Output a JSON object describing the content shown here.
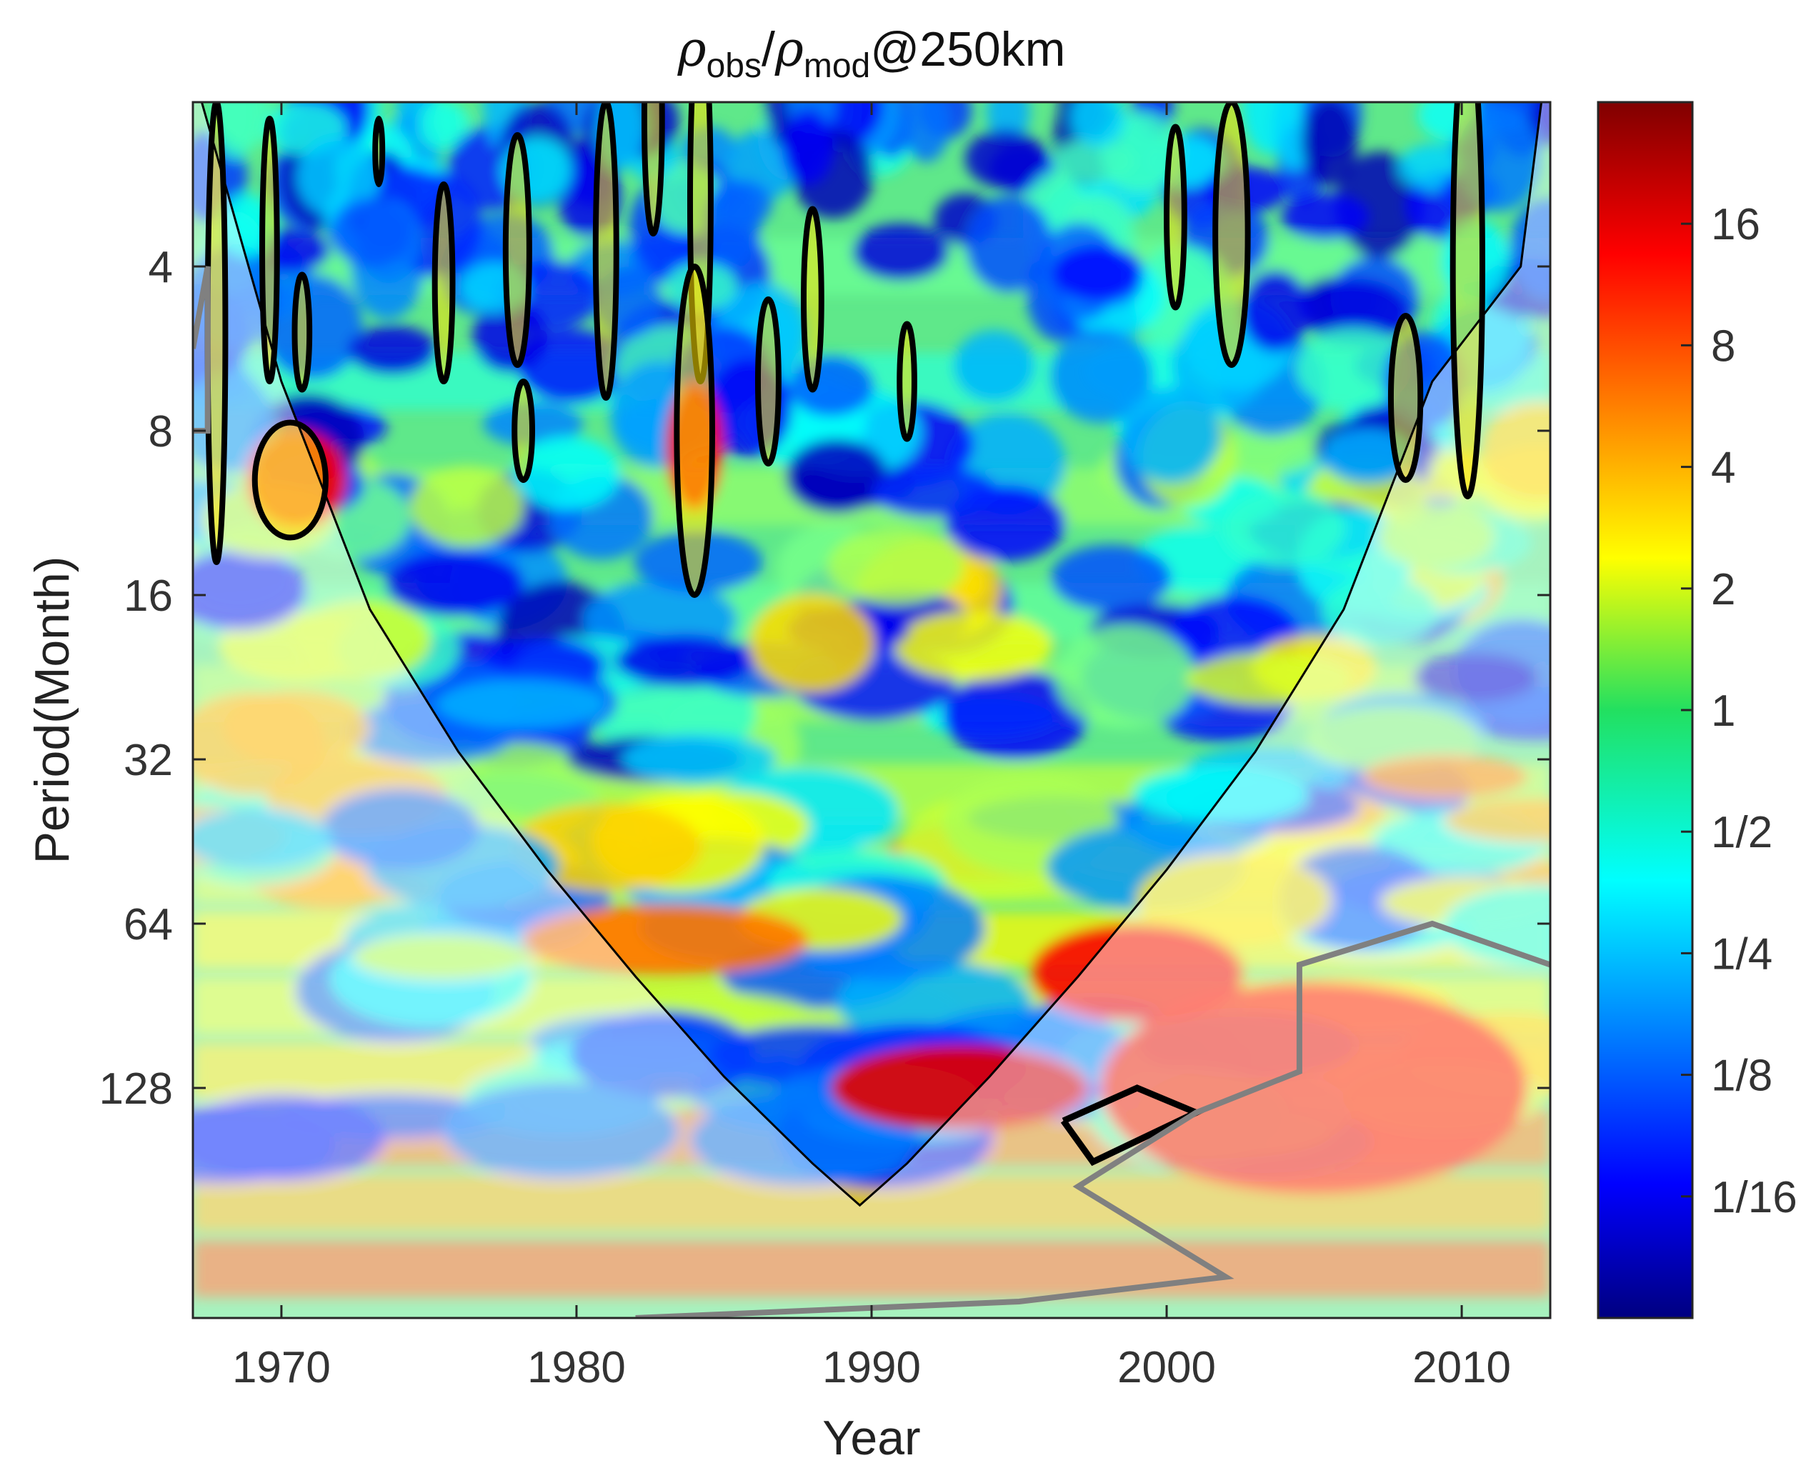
{
  "chart_data": {
    "type": "heatmap",
    "title": {
      "rho1": "ρ",
      "sub1": "obs",
      "slash": "/",
      "rho2": "ρ",
      "sub2": "mod",
      "tail": "@250km"
    },
    "xlabel": "Year",
    "ylabel": "Period(Month)",
    "xlim": [
      1967,
      2013
    ],
    "ylim_log2": [
      1.0,
      8.4
    ],
    "y_scale": "log2",
    "y_reversed": true,
    "x_ticks": [
      1970,
      1980,
      1990,
      2000,
      2010
    ],
    "x_tick_labels": [
      "1970",
      "1980",
      "1990",
      "2000",
      "2010"
    ],
    "y_ticks": [
      4,
      8,
      16,
      32,
      64,
      128
    ],
    "y_tick_labels": [
      "4",
      "8",
      "16",
      "32",
      "64",
      "128"
    ],
    "colorbar": {
      "scale": "log2",
      "range_log2": [
        -5,
        5
      ],
      "ticks_log2": [
        4,
        3,
        2,
        1,
        0,
        -1,
        -2,
        -3,
        -4
      ],
      "tick_labels": [
        "16",
        "8",
        "4",
        "2",
        "1",
        "1/2",
        "1/4",
        "1/8",
        "1/16"
      ],
      "colormap": "jet"
    },
    "cone_of_influence": {
      "x": [
        1967.3,
        1970,
        1973,
        1976,
        1979,
        1982,
        1985,
        1988,
        1989.6,
        1991.2,
        1994,
        1997,
        2000,
        2003,
        2006,
        2009,
        2012,
        2012.7
      ],
      "period": [
        2,
        6.5,
        17,
        31,
        51,
        80,
        122,
        176,
        210,
        176,
        122,
        80,
        51,
        31,
        17,
        6.5,
        4,
        2
      ]
    },
    "significance_contours_count": 19,
    "colors": {
      "coi_line": "#000000",
      "significant_contour": "#000000",
      "secondary_contour": "#808080",
      "shade_overlay": "#ffffff"
    }
  }
}
